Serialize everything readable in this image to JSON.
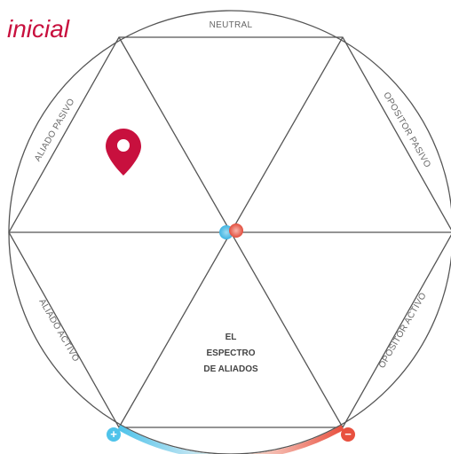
{
  "title": "inicial",
  "segments": {
    "top": "NEUTRAL",
    "upper_left": "ALIADO PASIVO",
    "upper_right": "OPOSITOR PASIVO",
    "lower_left": "ALIADO ACTIVO",
    "lower_right": "OPOSITOR ACTIVO"
  },
  "center_label": [
    "EL",
    "ESPECTRO",
    "DE ALIADOS"
  ],
  "signs": {
    "plus": "+",
    "minus": "−"
  }
}
